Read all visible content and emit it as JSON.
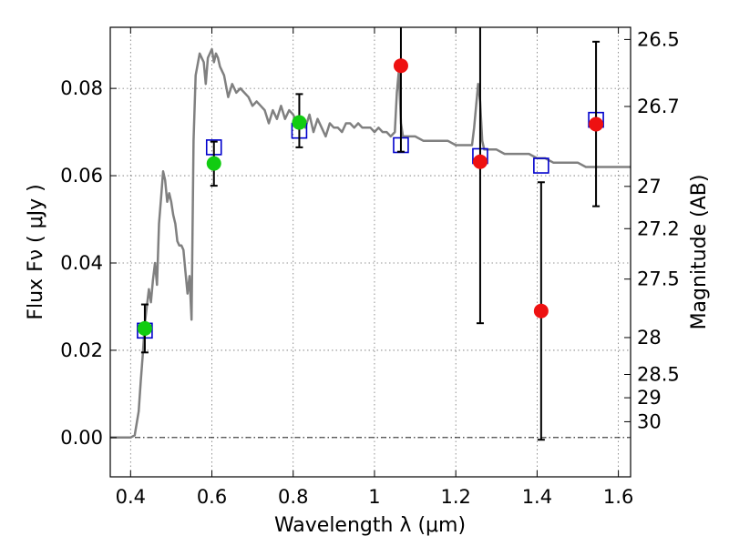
{
  "chart_data": {
    "type": "scatter",
    "title": "",
    "xlabel": "Wavelength  λ (μm)",
    "ylabel": "Flux  Fν  ( μJy )",
    "ylabel_right": "Magnitude (AB)",
    "xlim": [
      0.35,
      1.63
    ],
    "ylim": [
      -0.009,
      0.094
    ],
    "grid": true,
    "x_ticks": [
      0.4,
      0.6,
      0.8,
      1.0,
      1.2,
      1.4,
      1.6
    ],
    "x_tick_labels": [
      "0.4",
      "0.6",
      "0.8",
      "1",
      "1.2",
      "1.4",
      "1.6"
    ],
    "y_ticks": [
      0.0,
      0.02,
      0.04,
      0.06,
      0.08
    ],
    "y_tick_labels": [
      "0.00",
      "0.02",
      "0.04",
      "0.06",
      "0.08"
    ],
    "right_ticks": [
      {
        "label": "26.5",
        "mag": 26.5
      },
      {
        "label": "26.7",
        "mag": 26.7
      },
      {
        "label": "27",
        "mag": 27.0
      },
      {
        "label": "27.2",
        "mag": 27.2
      },
      {
        "label": "27.5",
        "mag": 27.5
      },
      {
        "label": "28",
        "mag": 28.0
      },
      {
        "label": "28.5",
        "mag": 28.5
      },
      {
        "label": "29",
        "mag": 29.0
      },
      {
        "label": "30",
        "mag": 30.0
      }
    ],
    "colors": {
      "template": "#808080",
      "model_marker": "#0000cc",
      "detection": "#11cc11",
      "measurement": "#ee1111",
      "errorbar": "#000000"
    },
    "series": [
      {
        "kind": "line",
        "points": [
          [
            0.35,
            0.0
          ],
          [
            0.4,
            0.0
          ],
          [
            0.41,
            0.0005
          ],
          [
            0.42,
            0.006
          ],
          [
            0.425,
            0.013
          ],
          [
            0.43,
            0.019
          ],
          [
            0.435,
            0.026
          ],
          [
            0.44,
            0.03
          ],
          [
            0.445,
            0.034
          ],
          [
            0.45,
            0.031
          ],
          [
            0.455,
            0.036
          ],
          [
            0.46,
            0.04
          ],
          [
            0.465,
            0.035
          ],
          [
            0.47,
            0.049
          ],
          [
            0.475,
            0.055
          ],
          [
            0.48,
            0.061
          ],
          [
            0.485,
            0.059
          ],
          [
            0.49,
            0.054
          ],
          [
            0.495,
            0.056
          ],
          [
            0.5,
            0.054
          ],
          [
            0.505,
            0.051
          ],
          [
            0.51,
            0.049
          ],
          [
            0.515,
            0.045
          ],
          [
            0.52,
            0.044
          ],
          [
            0.525,
            0.044
          ],
          [
            0.53,
            0.043
          ],
          [
            0.535,
            0.038
          ],
          [
            0.54,
            0.033
          ],
          [
            0.545,
            0.037
          ],
          [
            0.55,
            0.027
          ],
          [
            0.555,
            0.068
          ],
          [
            0.56,
            0.083
          ],
          [
            0.57,
            0.088
          ],
          [
            0.58,
            0.086
          ],
          [
            0.585,
            0.081
          ],
          [
            0.59,
            0.087
          ],
          [
            0.6,
            0.089
          ],
          [
            0.605,
            0.086
          ],
          [
            0.61,
            0.088
          ],
          [
            0.615,
            0.087
          ],
          [
            0.62,
            0.085
          ],
          [
            0.63,
            0.083
          ],
          [
            0.64,
            0.078
          ],
          [
            0.65,
            0.081
          ],
          [
            0.66,
            0.079
          ],
          [
            0.67,
            0.08
          ],
          [
            0.68,
            0.079
          ],
          [
            0.69,
            0.078
          ],
          [
            0.7,
            0.076
          ],
          [
            0.71,
            0.077
          ],
          [
            0.72,
            0.076
          ],
          [
            0.73,
            0.075
          ],
          [
            0.74,
            0.072
          ],
          [
            0.75,
            0.075
          ],
          [
            0.76,
            0.073
          ],
          [
            0.77,
            0.076
          ],
          [
            0.78,
            0.073
          ],
          [
            0.79,
            0.075
          ],
          [
            0.8,
            0.074
          ],
          [
            0.81,
            0.072
          ],
          [
            0.82,
            0.073
          ],
          [
            0.83,
            0.071
          ],
          [
            0.84,
            0.074
          ],
          [
            0.85,
            0.07
          ],
          [
            0.86,
            0.073
          ],
          [
            0.87,
            0.071
          ],
          [
            0.88,
            0.069
          ],
          [
            0.89,
            0.072
          ],
          [
            0.9,
            0.071
          ],
          [
            0.91,
            0.071
          ],
          [
            0.92,
            0.07
          ],
          [
            0.93,
            0.072
          ],
          [
            0.94,
            0.072
          ],
          [
            0.95,
            0.071
          ],
          [
            0.96,
            0.072
          ],
          [
            0.97,
            0.071
          ],
          [
            0.98,
            0.071
          ],
          [
            0.99,
            0.071
          ],
          [
            1.0,
            0.07
          ],
          [
            1.01,
            0.071
          ],
          [
            1.02,
            0.07
          ],
          [
            1.03,
            0.07
          ],
          [
            1.04,
            0.069
          ],
          [
            1.05,
            0.07
          ],
          [
            1.055,
            0.079
          ],
          [
            1.06,
            0.084
          ],
          [
            1.065,
            0.072
          ],
          [
            1.07,
            0.069
          ],
          [
            1.08,
            0.069
          ],
          [
            1.1,
            0.069
          ],
          [
            1.12,
            0.068
          ],
          [
            1.14,
            0.068
          ],
          [
            1.16,
            0.068
          ],
          [
            1.18,
            0.068
          ],
          [
            1.2,
            0.067
          ],
          [
            1.22,
            0.067
          ],
          [
            1.24,
            0.067
          ],
          [
            1.245,
            0.071
          ],
          [
            1.25,
            0.076
          ],
          [
            1.255,
            0.081
          ],
          [
            1.26,
            0.077
          ],
          [
            1.265,
            0.068
          ],
          [
            1.27,
            0.066
          ],
          [
            1.28,
            0.066
          ],
          [
            1.3,
            0.066
          ],
          [
            1.32,
            0.065
          ],
          [
            1.34,
            0.065
          ],
          [
            1.36,
            0.065
          ],
          [
            1.38,
            0.065
          ],
          [
            1.4,
            0.064
          ],
          [
            1.42,
            0.064
          ],
          [
            1.44,
            0.063
          ],
          [
            1.46,
            0.063
          ],
          [
            1.48,
            0.063
          ],
          [
            1.5,
            0.063
          ],
          [
            1.52,
            0.062
          ],
          [
            1.54,
            0.062
          ],
          [
            1.56,
            0.062
          ],
          [
            1.58,
            0.062
          ],
          [
            1.6,
            0.062
          ],
          [
            1.63,
            0.062
          ]
        ]
      },
      {
        "kind": "open-square",
        "points": [
          [
            0.435,
            0.0245
          ],
          [
            0.605,
            0.0665
          ],
          [
            0.815,
            0.0703
          ],
          [
            1.065,
            0.067
          ],
          [
            1.26,
            0.0645
          ],
          [
            1.41,
            0.0623
          ],
          [
            1.545,
            0.0728
          ]
        ]
      },
      {
        "kind": "green-dot",
        "points": [
          [
            0.435,
            0.025
          ],
          [
            0.605,
            0.0628
          ],
          [
            0.815,
            0.0722
          ]
        ]
      },
      {
        "kind": "red-dot",
        "points": [
          [
            1.065,
            0.0852
          ],
          [
            1.26,
            0.0632
          ],
          [
            1.41,
            0.029
          ],
          [
            1.545,
            0.0718
          ]
        ]
      },
      {
        "kind": "errorbar",
        "points": [
          {
            "x": 0.435,
            "y": 0.025,
            "ylo": 0.0195,
            "yhi": 0.0305
          },
          {
            "x": 0.605,
            "y": 0.0628,
            "ylo": 0.0577,
            "yhi": 0.0678
          },
          {
            "x": 0.815,
            "y": 0.0722,
            "ylo": 0.0665,
            "yhi": 0.0787
          },
          {
            "x": 1.065,
            "y": 0.0852,
            "ylo": 0.0655,
            "yhi": 0.105
          },
          {
            "x": 1.26,
            "y": 0.0632,
            "ylo": 0.0262,
            "yhi": 0.105
          },
          {
            "x": 1.41,
            "y": 0.029,
            "ylo": -0.0005,
            "yhi": 0.0585
          },
          {
            "x": 1.545,
            "y": 0.0718,
            "ylo": 0.053,
            "yhi": 0.0907
          }
        ]
      }
    ]
  }
}
